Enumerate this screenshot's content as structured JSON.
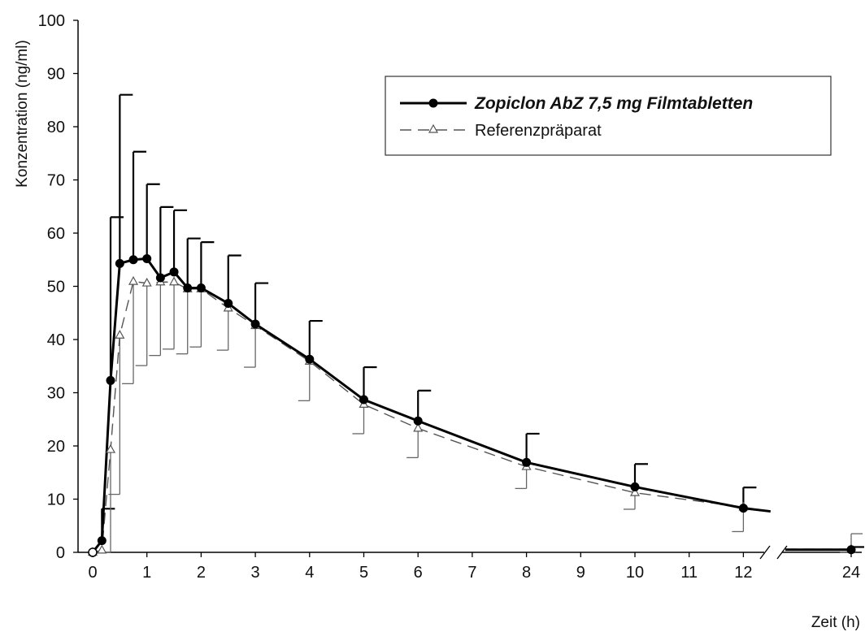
{
  "chart_data": {
    "type": "line",
    "title": "",
    "xlabel": "Zeit (h)",
    "ylabel": "Konzentration (ng/ml)",
    "ylim": [
      0,
      100
    ],
    "y_ticks": [
      "0",
      "10",
      "20",
      "30",
      "40",
      "50",
      "60",
      "70",
      "80",
      "90",
      "100"
    ],
    "x_ticks": [
      "0",
      "1",
      "2",
      "3",
      "4",
      "5",
      "6",
      "7",
      "8",
      "9",
      "10",
      "11",
      "12",
      "24"
    ],
    "x_axis_break": "between 12.5 and 24",
    "legend_position": "top-right",
    "series": [
      {
        "name": "Zopiclon AbZ 7,5 mg Filmtabletten",
        "style": "solid line, filled circle markers, error bars upward",
        "color": "#000000",
        "x": [
          0,
          0.17,
          0.33,
          0.5,
          0.75,
          1.0,
          1.25,
          1.5,
          1.75,
          2.0,
          2.5,
          3.0,
          4.0,
          5.0,
          6.0,
          8.0,
          10.0,
          12.0,
          24.0
        ],
        "y": [
          0,
          2.2,
          32.3,
          54.3,
          55.0,
          55.2,
          51.6,
          52.7,
          49.7,
          49.7,
          46.8,
          42.9,
          36.3,
          28.7,
          24.7,
          16.9,
          12.3,
          8.3,
          0.5
        ],
        "error_up": [
          0,
          6.0,
          30.7,
          31.7,
          20.3,
          14.0,
          13.3,
          11.6,
          9.3,
          8.6,
          9.0,
          7.7,
          7.2,
          6.1,
          5.7,
          5.4,
          4.3,
          3.9,
          0.5
        ],
        "trailing_x": 12.5,
        "trailing_y": 7.7
      },
      {
        "name": "Referenzpräparat",
        "style": "dashed line, open triangle markers, error bars downward",
        "color": "#444444",
        "x": [
          0,
          0.17,
          0.33,
          0.5,
          0.75,
          1.0,
          1.25,
          1.5,
          1.75,
          2.0,
          2.5,
          3.0,
          4.0,
          5.0,
          6.0,
          8.0,
          10.0,
          12.0,
          24.0
        ],
        "y": [
          0,
          0.4,
          19.3,
          40.8,
          50.9,
          50.6,
          50.8,
          50.8,
          49.5,
          49.5,
          45.9,
          42.6,
          35.9,
          27.8,
          23.3,
          16.1,
          11.2,
          8.5,
          0.6
        ],
        "error_down": [
          0,
          0.4,
          19.3,
          29.9,
          19.2,
          15.5,
          13.8,
          12.6,
          12.2,
          10.9,
          7.9,
          7.8,
          7.4,
          5.5,
          5.5,
          4.1,
          3.1,
          4.6,
          0.6
        ],
        "error_up_visible_only_at_24": 2.9,
        "trailing_x": 12.5,
        "trailing_y": 7.6
      }
    ]
  }
}
